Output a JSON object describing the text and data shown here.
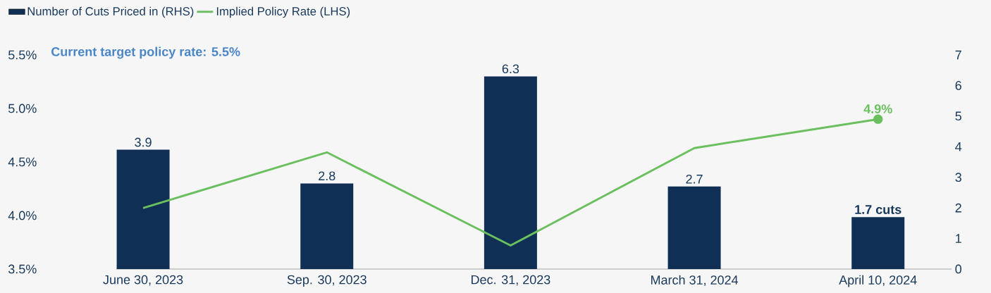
{
  "chart_data": {
    "type": "bar",
    "categories": [
      "June 30, 2023",
      "Sep. 30, 2023",
      "Dec. 31, 2023",
      "March 31, 2024",
      "April 10, 2024"
    ],
    "series": [
      {
        "name": "Number of Cuts Priced in (RHS)",
        "axis": "y2",
        "color": "#0f3054",
        "values": [
          3.9,
          2.8,
          6.3,
          2.7,
          1.7
        ],
        "value_labels": [
          "3.9",
          "2.8",
          "6.3",
          "2.7",
          "1.7 cuts"
        ]
      },
      {
        "name": "Implied Policy Rate (LHS)",
        "type": "line",
        "color": "#6abf5e",
        "values": [
          4.07,
          4.59,
          3.72,
          4.63,
          4.9
        ]
      }
    ],
    "ylim": [
      3.5,
      5.5
    ],
    "yticks": [
      {
        "value": 3.5,
        "label": "3.5%"
      },
      {
        "value": 4.0,
        "label": "4.0%"
      },
      {
        "value": 4.5,
        "label": "4.5%"
      },
      {
        "value": 5.0,
        "label": "5.0%"
      },
      {
        "value": 5.5,
        "label": "5.5%"
      }
    ],
    "y2lim": [
      0,
      7
    ],
    "y2ticks": [
      0,
      1,
      2,
      3,
      4,
      5,
      6,
      7
    ],
    "annotations": [
      "Current target policy rate: 5.5%",
      {
        "text": "4.9%",
        "x": "April 10, 2024",
        "y": 4.9
      }
    ],
    "legend": "top left",
    "grid": false,
    "marker": "none",
    "line_style": "solid"
  }
}
